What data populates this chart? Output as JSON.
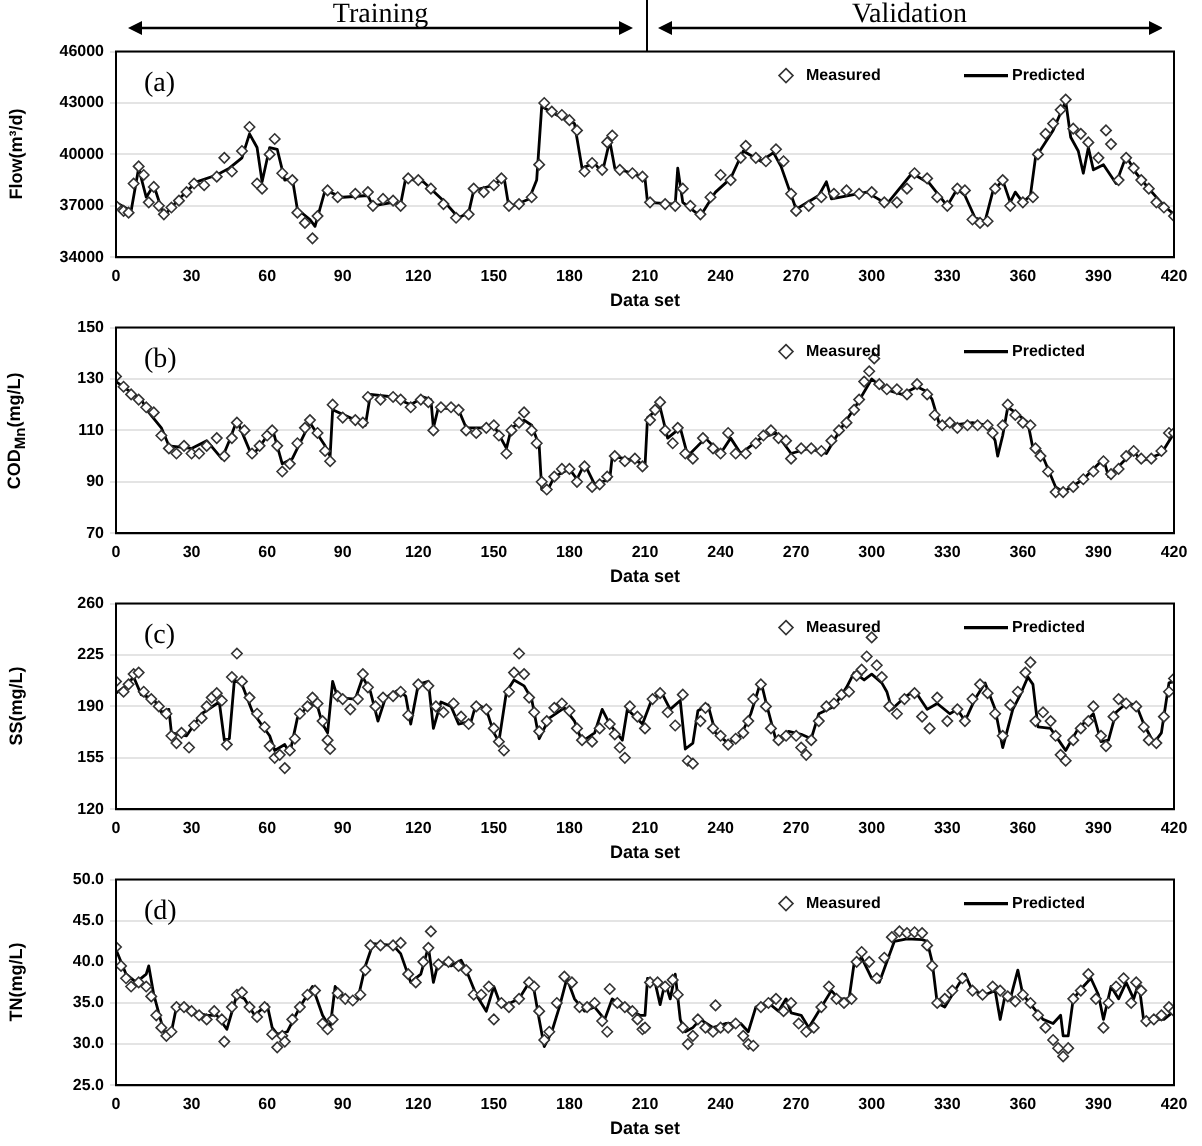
{
  "chart_data": [
    {
      "type": "scatter",
      "xlabel": "Data set",
      "ylabel": "Flow(m³/d)",
      "annotations": [
        "(a)",
        "Training",
        "Validation"
      ],
      "xlim": [
        0,
        420
      ],
      "xticks": [
        0,
        30,
        60,
        90,
        120,
        150,
        180,
        210,
        240,
        270,
        300,
        330,
        360,
        390,
        420
      ],
      "ylim": [
        34000,
        46000
      ],
      "yticks": [
        34000,
        37000,
        40000,
        43000,
        46000
      ],
      "grid": "y",
      "legend": "top right",
      "series": [
        {
          "name": "Measured",
          "marker": "diamond",
          "color": "#333333",
          "x": [
            0,
            3,
            5,
            7,
            9,
            11,
            13,
            15,
            17,
            19,
            22,
            25,
            28,
            31,
            35,
            40,
            43,
            46,
            50,
            53,
            56,
            58,
            61,
            63,
            66,
            70,
            72,
            75,
            78,
            80,
            84,
            88,
            95,
            100,
            102,
            106,
            110,
            113,
            116,
            120,
            125,
            130,
            135,
            140,
            142,
            146,
            150,
            153,
            156,
            160,
            165,
            168,
            170,
            173,
            177,
            180,
            183,
            186,
            189,
            193,
            195,
            197,
            200,
            205,
            209,
            212,
            218,
            222,
            225,
            228,
            232,
            236,
            240,
            244,
            248,
            250,
            254,
            258,
            262,
            265,
            268,
            270,
            275,
            280,
            285,
            290,
            295,
            300,
            305,
            310,
            314,
            317,
            322,
            326,
            330,
            334,
            337,
            340,
            343,
            346,
            349,
            352,
            355,
            360,
            364,
            366,
            369,
            372,
            375,
            377,
            380,
            383,
            386,
            390,
            393,
            395,
            398,
            401,
            404,
            407,
            410,
            413,
            416,
            420
          ],
          "values": [
            37000,
            36700,
            36600,
            38300,
            39300,
            38800,
            37200,
            38100,
            37000,
            36500,
            36900,
            37300,
            37800,
            38300,
            38200,
            38700,
            39800,
            39000,
            40200,
            41600,
            38300,
            38000,
            40000,
            40900,
            38900,
            38500,
            36600,
            36000,
            35100,
            36400,
            37900,
            37500,
            37700,
            37800,
            37000,
            37400,
            37300,
            37000,
            38600,
            38500,
            38000,
            37100,
            36300,
            36500,
            38000,
            37800,
            38200,
            38600,
            37000,
            37100,
            37500,
            39400,
            43000,
            42500,
            42300,
            42000,
            41400,
            39000,
            39500,
            39100,
            40700,
            41100,
            39100,
            38900,
            38700,
            37200,
            37100,
            37000,
            38000,
            37000,
            36500,
            37500,
            38800,
            38500,
            39800,
            40500,
            39800,
            39600,
            40300,
            39600,
            37700,
            36700,
            37000,
            37500,
            37700,
            37900,
            37700,
            37800,
            37200,
            37200,
            38000,
            38900,
            38600,
            37500,
            37000,
            38000,
            37900,
            36200,
            36000,
            36100,
            38000,
            38500,
            37000,
            37200,
            37500,
            40000,
            41200,
            41800,
            42600,
            43200,
            41500,
            41200,
            40700,
            39800,
            41400,
            40600,
            38500,
            39800,
            39200,
            38500,
            38000,
            37200,
            36900,
            36400
          ]
        },
        {
          "name": "Predicted",
          "type": "line",
          "marker": "none",
          "color": "#000000",
          "x": [
            0,
            6,
            9,
            12,
            15,
            19,
            25,
            32,
            40,
            45,
            50,
            53,
            56,
            58,
            61,
            64,
            67,
            70,
            72,
            77,
            79,
            83,
            90,
            100,
            102,
            110,
            113,
            115,
            122,
            130,
            136,
            140,
            142,
            150,
            154,
            156,
            164,
            167,
            169,
            175,
            182,
            185,
            190,
            193,
            196,
            198,
            205,
            210,
            211,
            222,
            223,
            225,
            232,
            238,
            244,
            249,
            256,
            261,
            264,
            270,
            279,
            282,
            284,
            298,
            306,
            316,
            323,
            330,
            334,
            337,
            341,
            345,
            348,
            352,
            355,
            357,
            360,
            363,
            365,
            372,
            377,
            379,
            382,
            384,
            386,
            388,
            392,
            397,
            401,
            405,
            410,
            416,
            420
          ],
          "values": [
            37200,
            36700,
            39200,
            37500,
            38200,
            36400,
            37400,
            38400,
            38800,
            39200,
            39800,
            41200,
            40400,
            38400,
            40400,
            40300,
            38500,
            38600,
            36800,
            36200,
            35800,
            37900,
            37500,
            37600,
            37000,
            37200,
            37100,
            38600,
            38400,
            37300,
            36300,
            36600,
            37900,
            38200,
            38700,
            36900,
            37400,
            38500,
            42800,
            42300,
            41800,
            39200,
            39500,
            38900,
            40800,
            39200,
            38900,
            38600,
            37200,
            37100,
            39200,
            37200,
            36400,
            37800,
            38600,
            40200,
            39600,
            40100,
            39300,
            36800,
            37600,
            38400,
            37400,
            37800,
            37100,
            38900,
            38300,
            37000,
            38000,
            37600,
            36300,
            36100,
            37800,
            38500,
            37200,
            37800,
            37200,
            37600,
            39800,
            41400,
            43100,
            41000,
            40200,
            38900,
            40400,
            39100,
            39400,
            38300,
            39900,
            38900,
            38000,
            37000,
            36500
          ]
        }
      ]
    },
    {
      "type": "scatter",
      "xlabel": "Data set",
      "ylabel": "COD$_{Mn}$(mg/L)",
      "annotations": [
        "(b)"
      ],
      "xlim": [
        0,
        420
      ],
      "xticks": [
        0,
        30,
        60,
        90,
        120,
        150,
        180,
        210,
        240,
        270,
        300,
        330,
        360,
        390,
        420
      ],
      "ylim": [
        70,
        150
      ],
      "yticks": [
        70,
        90,
        110,
        130,
        150
      ],
      "grid": "y",
      "legend": "top right",
      "series": [
        {
          "name": "Measured",
          "marker": "diamond",
          "color": "#333333",
          "x": [
            0,
            3,
            6,
            9,
            12,
            15,
            18,
            21,
            24,
            27,
            30,
            33,
            36,
            40,
            43,
            46,
            48,
            51,
            54,
            57,
            60,
            62,
            64,
            66,
            69,
            72,
            75,
            77,
            80,
            83,
            85,
            86,
            90,
            95,
            98,
            100,
            105,
            110,
            113,
            117,
            121,
            124,
            126,
            129,
            133,
            136,
            139,
            143,
            147,
            150,
            152,
            155,
            157,
            160,
            162,
            165,
            167,
            169,
            171,
            174,
            177,
            180,
            183,
            186,
            189,
            192,
            195,
            198,
            202,
            206,
            209,
            212,
            214,
            216,
            218,
            221,
            223,
            226,
            229,
            233,
            237,
            240,
            243,
            246,
            250,
            254,
            257,
            260,
            263,
            266,
            268,
            272,
            276,
            280,
            284,
            287,
            290,
            293,
            295,
            297,
            299,
            301,
            303,
            306,
            310,
            314,
            318,
            322,
            325,
            328,
            331,
            334,
            338,
            342,
            346,
            348,
            352,
            354,
            357,
            360,
            363,
            365,
            367,
            370,
            373,
            376,
            380,
            384,
            388,
            392,
            395,
            398,
            401,
            404,
            407,
            411,
            415,
            418,
            420
          ],
          "values": [
            131,
            127,
            124,
            122,
            119,
            117,
            108,
            103,
            101,
            104,
            101,
            101,
            104,
            107,
            100,
            107,
            113,
            110,
            101,
            104,
            108,
            110,
            104,
            94,
            97,
            105,
            111,
            114,
            109,
            102,
            98,
            120,
            115,
            114,
            113,
            123,
            122,
            123,
            122,
            119,
            122,
            121,
            110,
            119,
            119,
            118,
            110,
            109,
            111,
            112,
            108,
            101,
            110,
            113,
            117,
            110,
            105,
            90,
            87,
            92,
            95,
            95,
            90,
            96,
            88,
            89,
            92,
            100,
            98,
            99,
            96,
            114,
            118,
            121,
            110,
            105,
            111,
            101,
            99,
            107,
            103,
            101,
            109,
            101,
            101,
            105,
            108,
            110,
            107,
            106,
            99,
            103,
            103,
            102,
            106,
            110,
            113,
            118,
            122,
            129,
            133,
            138,
            128,
            126,
            126,
            124,
            128,
            124,
            116,
            112,
            113,
            111,
            112,
            112,
            112,
            109,
            112,
            120,
            116,
            113,
            112,
            103,
            100,
            94,
            86,
            86,
            88,
            91,
            94,
            98,
            93,
            95,
            100,
            102,
            99,
            99,
            102,
            109,
            109
          ]
        },
        {
          "name": "Predicted",
          "type": "line",
          "marker": "none",
          "color": "#000000",
          "x": [
            0,
            10,
            13,
            18,
            21,
            30,
            36,
            42,
            45,
            48,
            54,
            58,
            62,
            66,
            70,
            77,
            83,
            85,
            86,
            95,
            99,
            101,
            110,
            117,
            122,
            125,
            126,
            128,
            136,
            139,
            147,
            150,
            155,
            157,
            162,
            165,
            168,
            169,
            171,
            174,
            180,
            183,
            186,
            190,
            196,
            197,
            207,
            210,
            211,
            216,
            219,
            224,
            227,
            234,
            240,
            244,
            248,
            256,
            262,
            268,
            275,
            282,
            288,
            294,
            300,
            305,
            312,
            318,
            322,
            324,
            327,
            332,
            340,
            346,
            349,
            350,
            352,
            354,
            357,
            362,
            364,
            367,
            373,
            376,
            384,
            392,
            394,
            400,
            404,
            407,
            415,
            420
          ],
          "values": [
            129,
            122,
            117,
            111,
            104,
            103,
            106,
            99,
            106,
            114,
            100,
            105,
            111,
            97,
            99,
            113,
            104,
            100,
            118,
            114,
            112,
            124,
            123,
            120,
            123,
            122,
            111,
            119,
            118,
            111,
            111,
            112,
            103,
            111,
            114,
            112,
            104,
            87,
            86,
            92,
            95,
            91,
            97,
            89,
            91,
            100,
            98,
            96,
            115,
            119,
            107,
            111,
            100,
            107,
            101,
            107,
            101,
            107,
            109,
            101,
            103,
            101,
            111,
            120,
            130,
            126,
            124,
            127,
            125,
            122,
            112,
            112,
            113,
            112,
            106,
            100,
            108,
            119,
            117,
            113,
            103,
            102,
            88,
            86,
            91,
            99,
            92,
            98,
            102,
            98,
            101,
            109
          ]
        }
      ]
    },
    {
      "type": "scatter",
      "xlabel": "Data set",
      "ylabel": "SS(mg/L)",
      "annotations": [
        "(c)"
      ],
      "xlim": [
        0,
        420
      ],
      "xticks": [
        0,
        30,
        60,
        90,
        120,
        150,
        180,
        210,
        240,
        270,
        300,
        330,
        360,
        390,
        420
      ],
      "ylim": [
        120,
        260
      ],
      "yticks": [
        120,
        155,
        190,
        225,
        260
      ],
      "grid": "y",
      "legend": "top right",
      "series": [
        {
          "name": "Measured",
          "marker": "diamond",
          "color": "#333333",
          "x": [
            0,
            3,
            5,
            7,
            9,
            11,
            14,
            17,
            20,
            22,
            24,
            26,
            29,
            31,
            34,
            36,
            38,
            40,
            42,
            44,
            46,
            48,
            50,
            53,
            56,
            59,
            61,
            63,
            65,
            67,
            69,
            71,
            73,
            76,
            78,
            80,
            82,
            84,
            85,
            88,
            90,
            93,
            96,
            98,
            100,
            103,
            106,
            110,
            113,
            116,
            120,
            124,
            127,
            130,
            134,
            137,
            140,
            143,
            147,
            150,
            152,
            154,
            156,
            158,
            160,
            162,
            164,
            166,
            168,
            171,
            174,
            177,
            180,
            183,
            185,
            189,
            192,
            196,
            198,
            200,
            202,
            204,
            207,
            210,
            213,
            216,
            219,
            222,
            225,
            227,
            229,
            232,
            234,
            237,
            240,
            243,
            246,
            249,
            251,
            253,
            256,
            258,
            260,
            263,
            266,
            270,
            272,
            274,
            276,
            279,
            282,
            285,
            288,
            291,
            294,
            296,
            298,
            300,
            302,
            304,
            307,
            310,
            313,
            317,
            320,
            323,
            326,
            330,
            334,
            337,
            340,
            343,
            346,
            349,
            352,
            355,
            358,
            361,
            363,
            365,
            368,
            371,
            373,
            375,
            377,
            380,
            383,
            386,
            388,
            391,
            393,
            396,
            398,
            401,
            405,
            408,
            410,
            413,
            416,
            418,
            420
          ],
          "values": [
            207,
            200,
            205,
            212,
            213,
            200,
            195,
            190,
            185,
            170,
            165,
            172,
            162,
            177,
            182,
            190,
            196,
            199,
            194,
            164,
            210,
            226,
            207,
            196,
            185,
            176,
            163,
            155,
            157,
            148,
            160,
            168,
            185,
            190,
            196,
            192,
            180,
            167,
            161,
            197,
            195,
            188,
            195,
            212,
            203,
            190,
            196,
            197,
            200,
            184,
            205,
            204,
            190,
            186,
            192,
            183,
            178,
            190,
            188,
            175,
            166,
            160,
            200,
            213,
            226,
            212,
            196,
            186,
            173,
            180,
            189,
            192,
            187,
            175,
            167,
            166,
            175,
            178,
            171,
            162,
            155,
            190,
            183,
            175,
            195,
            199,
            186,
            177,
            198,
            153,
            151,
            180,
            189,
            175,
            170,
            164,
            168,
            172,
            180,
            195,
            205,
            190,
            175,
            167,
            170,
            170,
            162,
            157,
            167,
            180,
            190,
            192,
            198,
            200,
            211,
            215,
            224,
            237,
            218,
            210,
            190,
            185,
            195,
            199,
            183,
            175,
            196,
            180,
            188,
            180,
            195,
            205,
            199,
            185,
            170,
            191,
            200,
            213,
            220,
            180,
            186,
            180,
            170,
            157,
            153,
            167,
            175,
            180,
            190,
            170,
            163,
            183,
            195,
            192,
            190,
            176,
            167,
            165,
            183,
            200,
            209
          ]
        },
        {
          "name": "Predicted",
          "type": "line",
          "marker": "none",
          "color": "#000000",
          "x": [
            0,
            4,
            7,
            10,
            15,
            18,
            21,
            22,
            28,
            34,
            41,
            43,
            45,
            47,
            50,
            54,
            58,
            61,
            63,
            67,
            69,
            72,
            77,
            80,
            82,
            84,
            86,
            88,
            95,
            98,
            101,
            104,
            107,
            112,
            115,
            117,
            120,
            124,
            126,
            129,
            133,
            136,
            141,
            143,
            147,
            150,
            152,
            155,
            158,
            162,
            165,
            168,
            172,
            178,
            182,
            185,
            190,
            193,
            196,
            201,
            203,
            209,
            213,
            217,
            220,
            224,
            226,
            229,
            231,
            235,
            238,
            243,
            248,
            252,
            256,
            258,
            262,
            267,
            272,
            276,
            279,
            285,
            290,
            293,
            297,
            300,
            304,
            306,
            308,
            313,
            317,
            322,
            326,
            331,
            334,
            337,
            341,
            345,
            349,
            352,
            356,
            359,
            362,
            364,
            366,
            371,
            375,
            377,
            382,
            388,
            391,
            394,
            397,
            401,
            405,
            408,
            412,
            415,
            418,
            420
          ],
          "values": [
            199,
            204,
            210,
            198,
            195,
            186,
            188,
            172,
            170,
            185,
            193,
            167,
            168,
            208,
            205,
            187,
            177,
            170,
            160,
            164,
            158,
            182,
            192,
            190,
            178,
            172,
            207,
            196,
            195,
            210,
            200,
            180,
            196,
            201,
            197,
            178,
            205,
            207,
            175,
            193,
            190,
            178,
            180,
            192,
            188,
            172,
            166,
            200,
            208,
            204,
            195,
            168,
            182,
            189,
            180,
            166,
            172,
            188,
            178,
            167,
            188,
            178,
            196,
            198,
            188,
            194,
            161,
            165,
            187,
            191,
            172,
            165,
            170,
            185,
            207,
            193,
            167,
            173,
            171,
            168,
            185,
            190,
            203,
            213,
            208,
            212,
            206,
            200,
            188,
            196,
            201,
            188,
            192,
            185,
            188,
            180,
            195,
            206,
            188,
            162,
            188,
            198,
            210,
            205,
            176,
            175,
            165,
            160,
            175,
            185,
            166,
            167,
            186,
            192,
            191,
            178,
            165,
            172,
            206,
            207
          ]
        }
      ]
    },
    {
      "type": "scatter",
      "xlabel": "Data set",
      "ylabel": "TN(mg/L)",
      "annotations": [
        "(d)"
      ],
      "xlim": [
        0,
        420
      ],
      "xticks": [
        0,
        30,
        60,
        90,
        120,
        150,
        180,
        210,
        240,
        270,
        300,
        330,
        360,
        390,
        420
      ],
      "ylim": [
        25,
        50
      ],
      "yticks": [
        {
          "value": 25,
          "label": "25.0"
        },
        {
          "value": 30,
          "label": "30.0"
        },
        {
          "value": 35,
          "label": "35.0"
        },
        {
          "value": 40,
          "label": "40.0"
        },
        {
          "value": 45,
          "label": "45.0"
        },
        {
          "value": 50,
          "label": "50.0"
        }
      ],
      "grid": "y",
      "legend": "top right",
      "series": [
        {
          "name": "Measured",
          "marker": "diamond",
          "color": "#333333",
          "x": [
            0,
            2,
            4,
            6,
            9,
            12,
            14,
            16,
            18,
            20,
            22,
            24,
            27,
            30,
            33,
            36,
            39,
            42,
            43,
            46,
            48,
            50,
            53,
            56,
            59,
            62,
            64,
            66,
            67,
            70,
            73,
            76,
            79,
            82,
            84,
            86,
            88,
            91,
            94,
            97,
            99,
            101,
            105,
            110,
            113,
            116,
            119,
            122,
            124,
            125,
            128,
            132,
            136,
            139,
            142,
            145,
            148,
            150,
            153,
            156,
            160,
            164,
            166,
            168,
            170,
            172,
            175,
            178,
            181,
            184,
            187,
            190,
            193,
            195,
            196,
            199,
            202,
            205,
            207,
            209,
            210,
            212,
            215,
            218,
            221,
            223,
            225,
            227,
            229,
            231,
            234,
            237,
            238,
            240,
            243,
            246,
            249,
            251,
            253,
            256,
            259,
            262,
            265,
            268,
            271,
            274,
            277,
            280,
            283,
            286,
            289,
            292,
            294,
            296,
            299,
            302,
            305,
            308,
            311,
            314,
            317,
            320,
            322,
            324,
            326,
            329,
            332,
            336,
            340,
            344,
            348,
            351,
            354,
            357,
            360,
            363,
            366,
            369,
            372,
            374,
            376,
            378,
            380,
            383,
            386,
            389,
            392,
            394,
            397,
            400,
            403,
            405,
            407,
            409,
            412,
            415,
            418,
            420
          ],
          "values": [
            41.8,
            39.5,
            38,
            37,
            37.5,
            37,
            35.8,
            33.5,
            32,
            31,
            31.5,
            34.5,
            34.5,
            34,
            33.5,
            33,
            34,
            33,
            30.3,
            34.5,
            36,
            36.3,
            34.5,
            33.3,
            34.5,
            31.2,
            29.6,
            31,
            30.3,
            33,
            34.5,
            36,
            36.5,
            32.5,
            31.8,
            33,
            36.2,
            35.5,
            35.3,
            36,
            39,
            42,
            42,
            42,
            42.3,
            38.5,
            37.5,
            40,
            41.7,
            43.7,
            39.7,
            40,
            39.5,
            39,
            36,
            36,
            37,
            33,
            35,
            34.5,
            35.5,
            37.5,
            37,
            34,
            30.5,
            31.5,
            35,
            38.2,
            37.5,
            34.5,
            34.5,
            35,
            32.8,
            31.5,
            36.7,
            35,
            34.5,
            34,
            33,
            31.8,
            32,
            37.5,
            37.5,
            37,
            37.8,
            36,
            32,
            30,
            31,
            33,
            32,
            31.5,
            34.7,
            32,
            32,
            32.5,
            31,
            30,
            29.8,
            34.5,
            35,
            35.5,
            34,
            35,
            32.5,
            31.5,
            32,
            34.5,
            37,
            35.5,
            35,
            35.5,
            40,
            41.2,
            40,
            38,
            40.5,
            43,
            43.7,
            43.5,
            43.6,
            43.5,
            42,
            39.5,
            35,
            35.5,
            36.5,
            38,
            36.5,
            36,
            37,
            36.5,
            35.8,
            35.2,
            36,
            35,
            33.5,
            32,
            30.5,
            29.5,
            28.5,
            29.5,
            35.5,
            36.5,
            38.5,
            35.5,
            32,
            35,
            37,
            38,
            35,
            37.5,
            36.5,
            32.8,
            33,
            33.5,
            34.5,
            34
          ]
        },
        {
          "name": "Predicted",
          "type": "line",
          "marker": "none",
          "color": "#000000",
          "x": [
            0,
            4,
            8,
            12,
            13,
            15,
            19,
            22,
            24,
            30,
            36,
            40,
            44,
            48,
            51,
            55,
            60,
            62,
            64,
            68,
            73,
            78,
            82,
            85,
            87,
            91,
            96,
            99,
            102,
            110,
            113,
            117,
            121,
            124,
            126,
            128,
            133,
            137,
            139,
            143,
            147,
            150,
            153,
            160,
            164,
            166,
            168,
            170,
            173,
            176,
            179,
            182,
            186,
            190,
            194,
            197,
            202,
            208,
            210,
            211,
            214,
            216,
            218,
            220,
            222,
            224,
            226,
            229,
            232,
            237,
            242,
            248,
            251,
            254,
            259,
            263,
            266,
            268,
            272,
            275,
            280,
            284,
            287,
            291,
            293,
            296,
            300,
            303,
            306,
            309,
            314,
            320,
            322,
            324,
            326,
            329,
            333,
            337,
            340,
            345,
            349,
            351,
            353,
            355,
            358,
            360,
            364,
            368,
            372,
            375,
            376,
            378,
            380,
            384,
            387,
            390,
            392,
            395,
            398,
            401,
            404,
            406,
            408,
            412,
            416,
            420
          ],
          "values": [
            41.5,
            38.5,
            37.5,
            38.5,
            39.5,
            36,
            31.5,
            31.5,
            34.5,
            34,
            33.5,
            33.5,
            31.8,
            36,
            35.5,
            33.5,
            34.8,
            32,
            31.2,
            31.5,
            34.5,
            37,
            33.5,
            32,
            37,
            35.5,
            35.5,
            39.5,
            42.2,
            42,
            41,
            37.5,
            38.5,
            41.8,
            37.5,
            40,
            39.5,
            40.2,
            39,
            36,
            34,
            37,
            34.5,
            35.5,
            37.5,
            36.5,
            33,
            29.7,
            31.5,
            34.5,
            38,
            35.5,
            34,
            34.5,
            33,
            35.5,
            34.5,
            33.5,
            33.5,
            38,
            37.5,
            34.8,
            37.5,
            35.5,
            38.5,
            33,
            31.5,
            32,
            33,
            32,
            32.5,
            32.5,
            31.5,
            34.5,
            35,
            34,
            35.5,
            33.8,
            33.5,
            32,
            34.5,
            36.5,
            35.5,
            35.5,
            39.8,
            40.5,
            38,
            37.5,
            40,
            42.5,
            42.8,
            42.7,
            42.5,
            40,
            35,
            34.5,
            36.5,
            38.5,
            36.5,
            36,
            36.5,
            33,
            36,
            35.5,
            39,
            36,
            34.5,
            33,
            32.5,
            33.5,
            31,
            31,
            35.5,
            37,
            38,
            36,
            33,
            37,
            35.5,
            37.5,
            35.5,
            37.5,
            32.8,
            33,
            33,
            34
          ]
        }
      ]
    }
  ]
}
